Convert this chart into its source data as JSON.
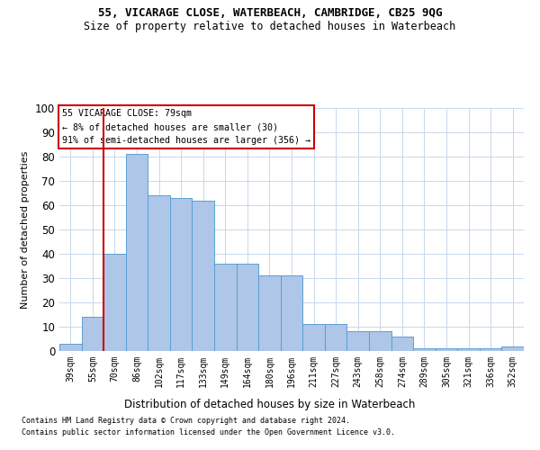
{
  "title1": "55, VICARAGE CLOSE, WATERBEACH, CAMBRIDGE, CB25 9QG",
  "title2": "Size of property relative to detached houses in Waterbeach",
  "xlabel": "Distribution of detached houses by size in Waterbeach",
  "ylabel": "Number of detached properties",
  "categories": [
    "39sqm",
    "55sqm",
    "70sqm",
    "86sqm",
    "102sqm",
    "117sqm",
    "133sqm",
    "149sqm",
    "164sqm",
    "180sqm",
    "196sqm",
    "211sqm",
    "227sqm",
    "243sqm",
    "258sqm",
    "274sqm",
    "289sqm",
    "305sqm",
    "321sqm",
    "336sqm",
    "352sqm"
  ],
  "values": [
    3,
    14,
    40,
    81,
    64,
    63,
    62,
    36,
    36,
    31,
    31,
    11,
    11,
    8,
    8,
    6,
    1,
    1,
    1,
    1,
    2
  ],
  "bar_color": "#aec6e8",
  "bar_edge_color": "#5a9fd4",
  "vline_x": 1.5,
  "vline_color": "#cc0000",
  "annotation_text": "55 VICARAGE CLOSE: 79sqm\n← 8% of detached houses are smaller (30)\n91% of semi-detached houses are larger (356) →",
  "annotation_box_color": "#ffffff",
  "annotation_box_edge": "#cc0000",
  "ylim": [
    0,
    100
  ],
  "yticks": [
    0,
    10,
    20,
    30,
    40,
    50,
    60,
    70,
    80,
    90,
    100
  ],
  "footnote1": "Contains HM Land Registry data © Crown copyright and database right 2024.",
  "footnote2": "Contains public sector information licensed under the Open Government Licence v3.0.",
  "background_color": "#ffffff",
  "grid_color": "#c8d8ea"
}
